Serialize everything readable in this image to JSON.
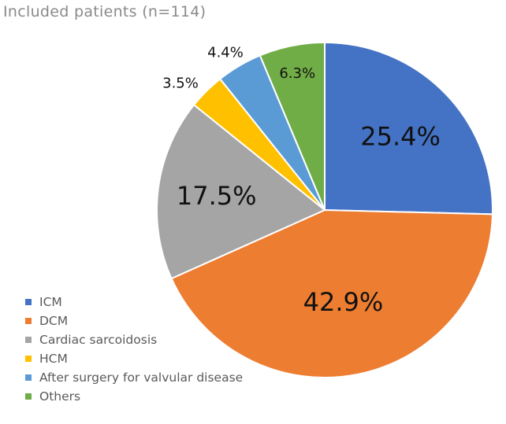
{
  "chart_data": {
    "type": "pie",
    "title": "Included patients (n=114)",
    "categories": [
      "ICM",
      "DCM",
      "Cardiac sarcoidosis",
      "HCM",
      "After surgery for valvular disease",
      "Others"
    ],
    "values": [
      25.4,
      42.9,
      17.5,
      3.5,
      4.4,
      6.3
    ],
    "value_labels": [
      "25.4%",
      "42.9%",
      "17.5%",
      "3.5%",
      "4.4%",
      "6.3%"
    ],
    "colors": [
      "#4472c4",
      "#ed7d31",
      "#a5a5a5",
      "#ffc000",
      "#5b9bd5",
      "#70ad47"
    ],
    "legend_position": "bottom-left",
    "start_angle": "12 o'clock, clockwise"
  }
}
